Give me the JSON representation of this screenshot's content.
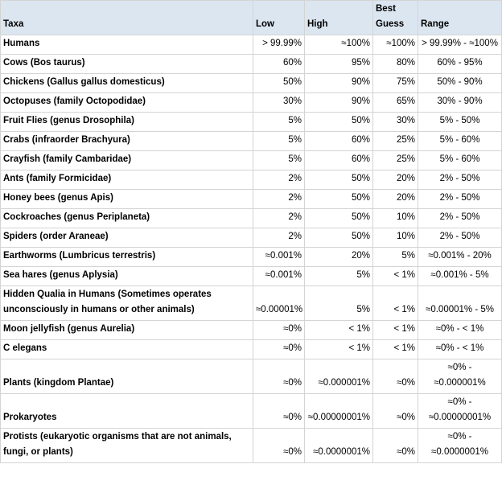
{
  "table": {
    "header": [
      "Taxa",
      "Low",
      "High",
      "Best Guess",
      "Range"
    ],
    "rows": [
      [
        "Humans",
        "> 99.99%",
        "≈100%",
        "≈100%",
        "> 99.99% - ≈100%"
      ],
      [
        "Cows (Bos taurus)",
        "60%",
        "95%",
        "80%",
        "60% - 95%"
      ],
      [
        "Chickens (Gallus gallus domesticus)",
        "50%",
        "90%",
        "75%",
        "50% - 90%"
      ],
      [
        "Octopuses (family Octopodidae)",
        "30%",
        "90%",
        "65%",
        "30% - 90%"
      ],
      [
        "Fruit Flies (genus Drosophila)",
        "5%",
        "50%",
        "30%",
        "5% - 50%"
      ],
      [
        "Crabs (infraorder Brachyura)",
        "5%",
        "60%",
        "25%",
        "5% - 60%"
      ],
      [
        "Crayfish (family Cambaridae)",
        "5%",
        "60%",
        "25%",
        "5% - 60%"
      ],
      [
        "Ants (family Formicidae)",
        "2%",
        "50%",
        "20%",
        "2% - 50%"
      ],
      [
        "Honey bees (genus Apis)",
        "2%",
        "50%",
        "20%",
        "2% - 50%"
      ],
      [
        "Cockroaches (genus Periplaneta)",
        "2%",
        "50%",
        "10%",
        "2% - 50%"
      ],
      [
        "Spiders (order Araneae)",
        "2%",
        "50%",
        "10%",
        "2% - 50%"
      ],
      [
        "Earthworms (Lumbricus terrestris)",
        "≈0.001%",
        "20%",
        "5%",
        "≈0.001% - 20%"
      ],
      [
        "Sea hares (genus Aplysia)",
        "≈0.001%",
        "5%",
        "< 1%",
        "≈0.001% - 5%"
      ],
      [
        "Hidden Qualia in Humans (Sometimes operates unconsciously in humans or other animals)",
        "≈0.00001%",
        "5%",
        "< 1%",
        "≈0.00001% - 5%"
      ],
      [
        "Moon jellyfish (genus Aurelia)",
        "≈0%",
        "< 1%",
        "< 1%",
        "≈0% - < 1%"
      ],
      [
        "C elegans",
        "≈0%",
        "< 1%",
        "< 1%",
        "≈0% - < 1%"
      ],
      [
        "Plants (kingdom Plantae)",
        "≈0%",
        "≈0.000001%",
        "≈0%",
        "≈0% - ≈0.000001%"
      ],
      [
        "Prokaryotes",
        "≈0%",
        "≈0.00000001%",
        "≈0%",
        "≈0% - ≈0.00000001%"
      ],
      [
        "Protists (eukaryotic organisms that are not animals, fungi, or plants)",
        "≈0%",
        "≈0.0000001%",
        "≈0%",
        "≈0% - ≈0.0000001%"
      ]
    ]
  }
}
